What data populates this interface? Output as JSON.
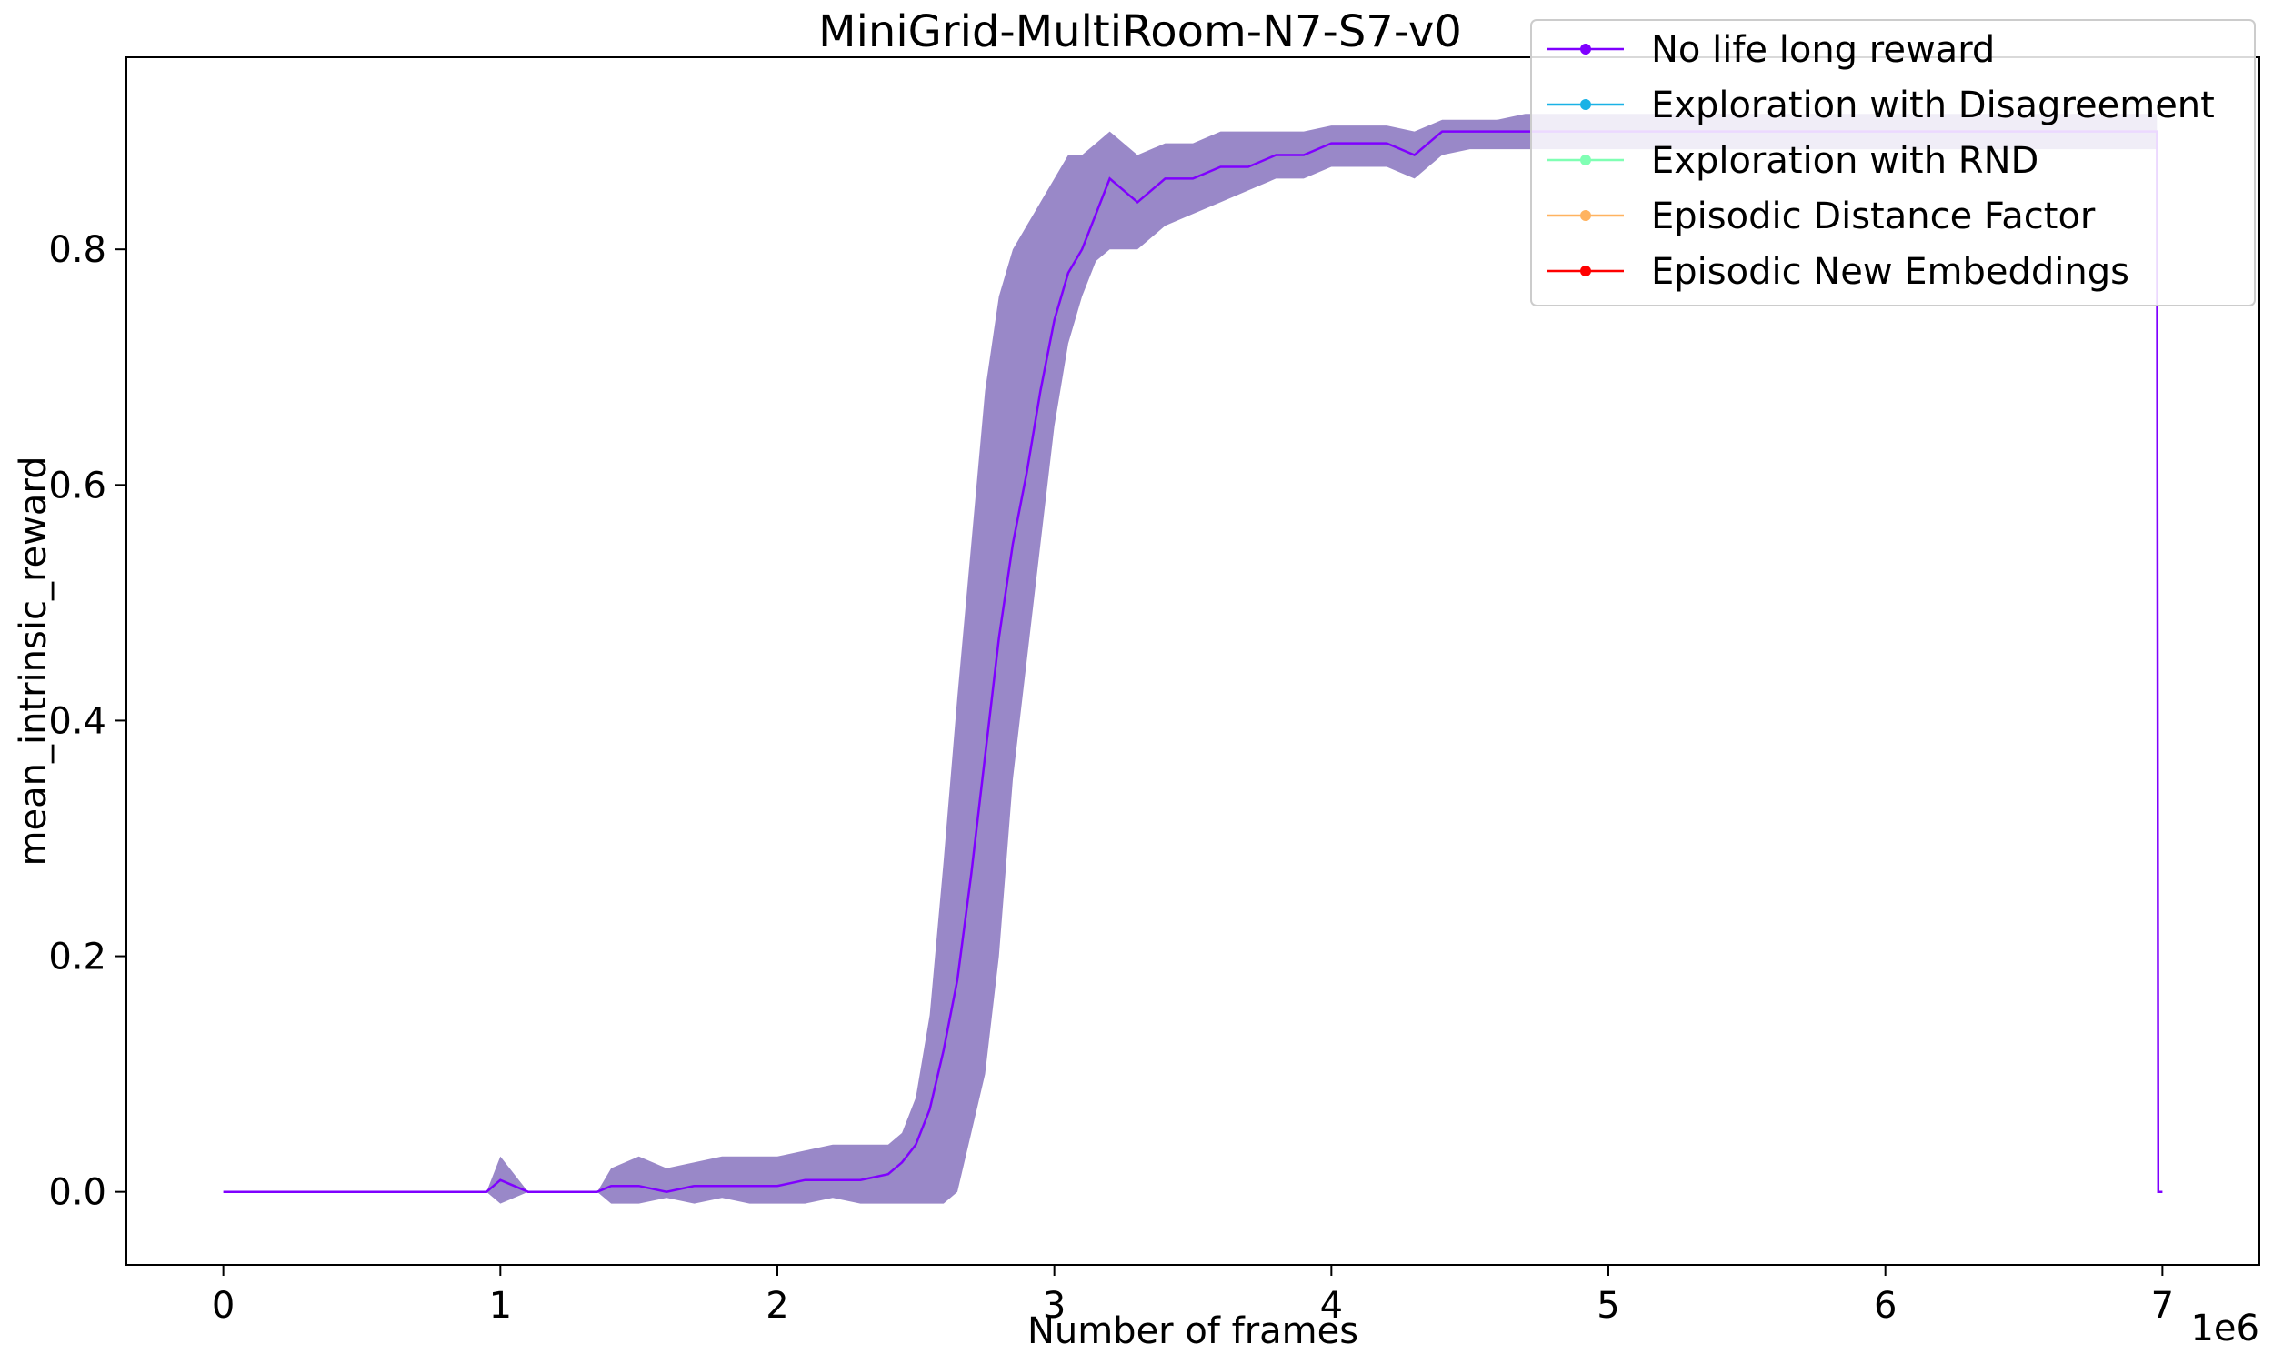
{
  "chart_data": {
    "type": "line",
    "title": "MiniGrid-MultiRoom-N7-S7-v0",
    "xlabel": "Number of frames",
    "ylabel": "mean_intrinsic_reward",
    "x_offset_label": "1e6",
    "xlim": [
      -0.35,
      7.35
    ],
    "ylim": [
      -0.062,
      0.963
    ],
    "x_ticks": [
      0,
      1,
      2,
      3,
      4,
      5,
      6,
      7
    ],
    "x_tick_labels": [
      "0",
      "1",
      "2",
      "3",
      "4",
      "5",
      "6",
      "7"
    ],
    "y_ticks": [
      0.0,
      0.2,
      0.4,
      0.6,
      0.8
    ],
    "y_tick_labels": [
      "0.0",
      "0.2",
      "0.4",
      "0.6",
      "0.8"
    ],
    "grid": false,
    "legend_position": "top-right",
    "legend": [
      {
        "name": "No life long reward",
        "color": "#7f00ff"
      },
      {
        "name": "Exploration with Disagreement",
        "color": "#1ab2e6"
      },
      {
        "name": "Exploration with RND",
        "color": "#80ffb4"
      },
      {
        "name": "Episodic Distance Factor",
        "color": "#ffb360"
      },
      {
        "name": "Episodic New Embeddings",
        "color": "#ff0000"
      }
    ],
    "series": [
      {
        "name": "No life long reward",
        "color": "#7f00ff",
        "band_color": "#9988c8",
        "x": [
          0,
          0.45,
          0.5,
          0.95,
          1.0,
          1.1,
          1.15,
          1.2,
          1.35,
          1.4,
          1.5,
          1.6,
          1.7,
          1.8,
          1.9,
          2.0,
          2.1,
          2.2,
          2.3,
          2.4,
          2.45,
          2.5,
          2.55,
          2.6,
          2.65,
          2.7,
          2.75,
          2.8,
          2.85,
          2.9,
          2.95,
          3.0,
          3.05,
          3.1,
          3.15,
          3.2,
          3.3,
          3.4,
          3.5,
          3.6,
          3.7,
          3.8,
          3.9,
          4.0,
          4.1,
          4.2,
          4.3,
          4.4,
          4.5,
          4.6,
          4.7,
          4.8,
          5.0,
          5.5,
          6.0,
          6.5,
          6.8,
          6.9,
          6.98,
          6.985,
          7.0
        ],
        "y": [
          0.0,
          0.0,
          0.0,
          0.0,
          0.01,
          0.0,
          0.0,
          0.0,
          0.0,
          0.005,
          0.005,
          0.0,
          0.005,
          0.005,
          0.005,
          0.005,
          0.01,
          0.01,
          0.01,
          0.015,
          0.025,
          0.04,
          0.07,
          0.12,
          0.18,
          0.27,
          0.37,
          0.47,
          0.55,
          0.61,
          0.68,
          0.74,
          0.78,
          0.8,
          0.83,
          0.86,
          0.84,
          0.86,
          0.86,
          0.87,
          0.87,
          0.88,
          0.88,
          0.89,
          0.89,
          0.89,
          0.88,
          0.9,
          0.9,
          0.9,
          0.9,
          0.9,
          0.9,
          0.9,
          0.9,
          0.9,
          0.9,
          0.9,
          0.9,
          0.0,
          0.0
        ],
        "y_lower": [
          0.0,
          0.0,
          0.0,
          0.0,
          -0.01,
          0.0,
          0.0,
          0.0,
          0.0,
          -0.01,
          -0.01,
          -0.005,
          -0.01,
          -0.005,
          -0.01,
          -0.01,
          -0.01,
          -0.005,
          -0.01,
          -0.01,
          -0.01,
          -0.01,
          -0.01,
          -0.01,
          0.0,
          0.05,
          0.1,
          0.2,
          0.35,
          0.45,
          0.55,
          0.65,
          0.72,
          0.76,
          0.79,
          0.8,
          0.8,
          0.82,
          0.83,
          0.84,
          0.85,
          0.86,
          0.86,
          0.87,
          0.87,
          0.87,
          0.86,
          0.88,
          0.885,
          0.885,
          0.885,
          0.885,
          0.885,
          0.885,
          0.885,
          0.885,
          0.885,
          0.885,
          0.885,
          0.0,
          0.0
        ],
        "y_upper": [
          0.0,
          0.0,
          0.0,
          0.0,
          0.03,
          0.0,
          0.0,
          0.0,
          0.0,
          0.02,
          0.03,
          0.02,
          0.025,
          0.03,
          0.03,
          0.03,
          0.035,
          0.04,
          0.04,
          0.04,
          0.05,
          0.08,
          0.15,
          0.28,
          0.42,
          0.55,
          0.68,
          0.76,
          0.8,
          0.82,
          0.84,
          0.86,
          0.88,
          0.88,
          0.89,
          0.9,
          0.88,
          0.89,
          0.89,
          0.9,
          0.9,
          0.9,
          0.9,
          0.905,
          0.905,
          0.905,
          0.9,
          0.91,
          0.91,
          0.91,
          0.915,
          0.915,
          0.915,
          0.915,
          0.915,
          0.915,
          0.915,
          0.915,
          0.915,
          0.0,
          0.0
        ]
      }
    ]
  }
}
